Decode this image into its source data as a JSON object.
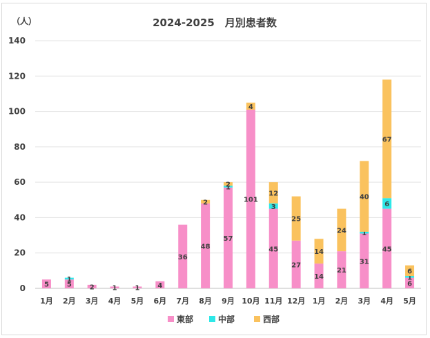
{
  "chart_data": {
    "type": "bar",
    "stacked": true,
    "title": "2024-2025　月別患者数",
    "unit_label": "（人）",
    "xlabel": "",
    "ylabel": "",
    "ylim": [
      0,
      140
    ],
    "yticks": [
      0,
      20,
      40,
      60,
      80,
      100,
      120,
      140
    ],
    "grid": true,
    "legend_position": "bottom",
    "categories": [
      "1月",
      "2月",
      "3月",
      "4月",
      "5月",
      "6月",
      "7月",
      "8月",
      "9月",
      "10月",
      "11月",
      "12月",
      "1月",
      "2月",
      "3月",
      "4月",
      "5月"
    ],
    "series": [
      {
        "name": "東部",
        "color": "#F78FC8",
        "values": [
          5,
          5,
          2,
          1,
          1,
          4,
          36,
          48,
          57,
          101,
          45,
          27,
          14,
          21,
          31,
          45,
          6
        ]
      },
      {
        "name": "中部",
        "color": "#2EE8E8",
        "values": [
          0,
          1,
          0,
          0,
          0,
          0,
          0,
          0,
          1,
          0,
          3,
          0,
          0,
          0,
          1,
          6,
          1
        ]
      },
      {
        "name": "西部",
        "color": "#FAC25E",
        "values": [
          0,
          0,
          0,
          0,
          0,
          0,
          0,
          2,
          2,
          4,
          12,
          25,
          14,
          24,
          40,
          67,
          6
        ]
      }
    ],
    "data_labels": {
      "東部": [
        "5",
        "5",
        "2",
        "1",
        "1",
        "4",
        "36",
        "48",
        "57",
        "101",
        "45",
        "27",
        "14",
        "21",
        "31",
        "45",
        "6"
      ],
      "中部": [
        "",
        "1",
        "",
        "",
        "",
        "",
        "",
        "",
        "1",
        "",
        "3",
        "",
        "",
        "",
        "1",
        "6",
        "1"
      ],
      "西部": [
        "",
        "",
        "",
        "",
        "",
        "",
        "",
        "2",
        "2",
        "4",
        "12",
        "25",
        "14",
        "24",
        "40",
        "67",
        "6"
      ]
    }
  }
}
